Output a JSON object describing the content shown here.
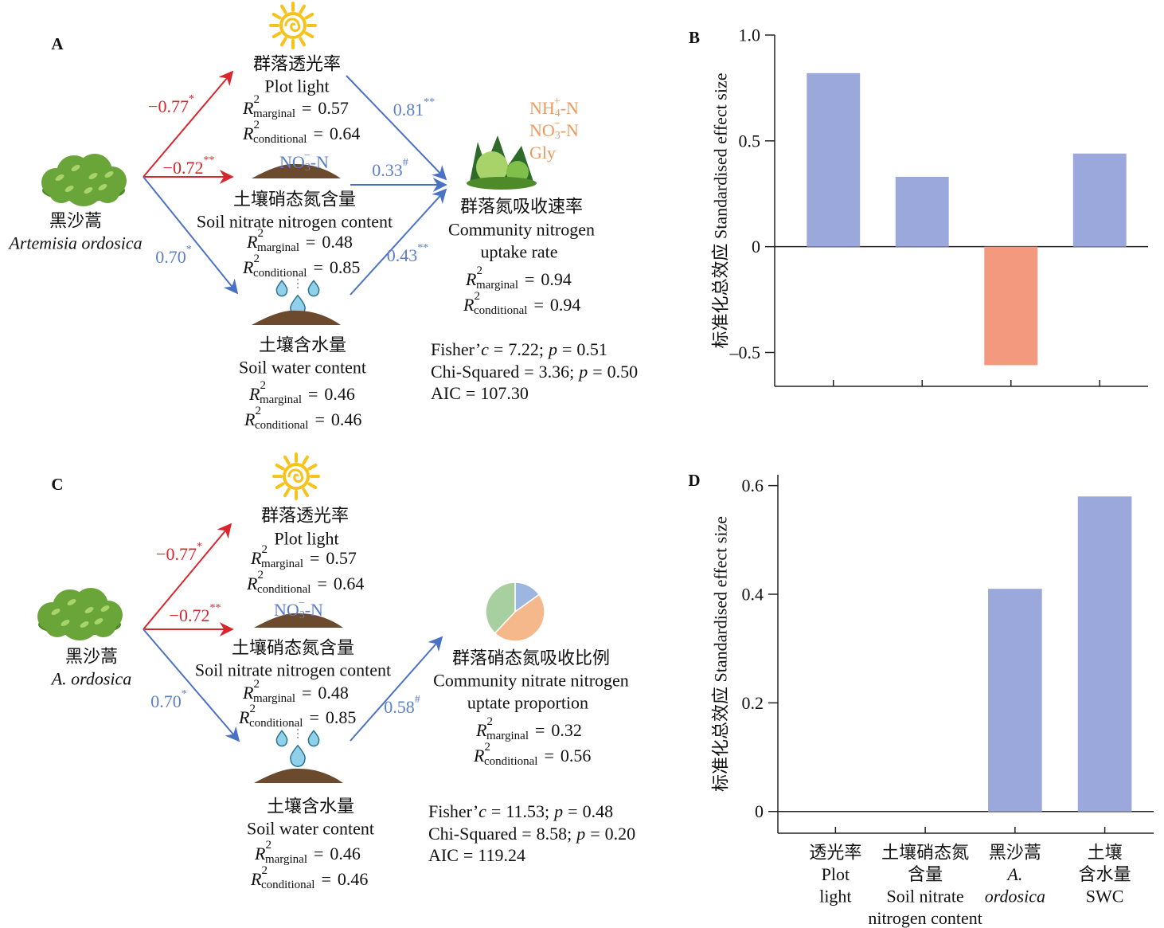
{
  "symbols": {
    "r": "R",
    "power": "2",
    "equals": "=",
    "marginal": "marginal",
    "conditional": "conditional",
    "fisher": "Fisher’",
    "c": "c",
    "chi": "Chi-Squared",
    "p": "p",
    "aic": "AIC",
    "semicolon": ";"
  },
  "panels": [
    {
      "letter": "A",
      "predictor": {
        "zh": "黑沙蒿",
        "en": "Artemisia ordosica"
      },
      "light": {
        "zh": "群落透光率",
        "en": "Plot light",
        "r2_marginal": "0.57",
        "r2_conditional": "0.64"
      },
      "nitrate": {
        "tag": {
          "base": "NO",
          "sub": "3",
          "sup": "−",
          "rest": "-N"
        },
        "zh": "土壤硝态氮含量",
        "en": "Soil nitrate nitrogen content",
        "r2_marginal": "0.48",
        "r2_conditional": "0.85"
      },
      "water": {
        "zh": "土壤含水量",
        "en": "Soil water content",
        "r2_marginal": "0.46",
        "r2_conditional": "0.46"
      },
      "response": {
        "lines": [
          "群落氮吸收速率",
          "Community nitrogen",
          "uptake rate"
        ],
        "r2_marginal": "0.94",
        "r2_conditional": "0.94",
        "forms": [
          {
            "base": "NH",
            "sub": "4",
            "sup": "+",
            "rest": "-N"
          },
          {
            "base": "NO",
            "sub": "3",
            "sup": "−",
            "rest": "-N"
          },
          {
            "base": "Gly"
          }
        ]
      },
      "paths": [
        {
          "value": "−0.77",
          "sig": "*"
        },
        {
          "value": "−0.72",
          "sig": "**"
        },
        {
          "value": "0.70",
          "sig": "*"
        },
        {
          "value": "0.81",
          "sig": "**"
        },
        {
          "value": "0.33",
          "sig": "#"
        },
        {
          "value": "0.43",
          "sig": "**"
        }
      ],
      "fit": {
        "fisher_c": "7.22",
        "fisher_p": "0.51",
        "chi": "3.36",
        "chi_p": "0.50",
        "aic": "107.30"
      }
    },
    {
      "letter": "C",
      "predictor": {
        "zh": "黑沙蒿",
        "en": "A. ordosica"
      },
      "light": {
        "zh": "群落透光率",
        "en": "Plot light",
        "r2_marginal": "0.57",
        "r2_conditional": "0.64"
      },
      "nitrate": {
        "tag": {
          "base": "NO",
          "sub": "3",
          "sup": "−",
          "rest": "-N"
        },
        "zh": "土壤硝态氮含量",
        "en": "Soil nitrate nitrogen content",
        "r2_marginal": "0.48",
        "r2_conditional": "0.85"
      },
      "water": {
        "zh": "土壤含水量",
        "en": "Soil water content",
        "r2_marginal": "0.46",
        "r2_conditional": "0.46"
      },
      "response": {
        "lines": [
          "群落硝态氮吸收比例",
          "Community nitrate nitrogen",
          "uptate proportion"
        ],
        "r2_marginal": "0.32",
        "r2_conditional": "0.56"
      },
      "paths": [
        {
          "value": "−0.77",
          "sig": "*"
        },
        {
          "value": "−0.72",
          "sig": "**"
        },
        {
          "value": "0.70",
          "sig": "*"
        },
        {
          "value": "0.58",
          "sig": "#"
        }
      ],
      "fit": {
        "fisher_c": "11.53",
        "fisher_p": "0.48",
        "chi": "8.58",
        "chi_p": "0.20",
        "aic": "119.24"
      }
    }
  ],
  "chart_data": [
    {
      "type": "bar",
      "label": "B",
      "ylabel": "标准化总效应 Standardised effect size",
      "categories": [
        null,
        null,
        null,
        null
      ],
      "values": [
        0.82,
        0.33,
        -0.56,
        0.44
      ],
      "colors": [
        "#9ba8dc",
        "#9ba8dc",
        "#f39a7e",
        "#9ba8dc"
      ],
      "ylim": [
        -0.66,
        1.0
      ],
      "yticks": [
        {
          "value": 1,
          "label": "1.0"
        },
        0.5,
        0,
        {
          "value": -0.5,
          "label": "–0.5"
        }
      ]
    },
    {
      "type": "bar",
      "label": "D",
      "ylabel": "标准化总效应 Standardised effect size",
      "categories": [
        [
          "透光率",
          "Plot",
          "light"
        ],
        [
          "土壤硝态氮",
          "含量",
          "Soil nitrate",
          "nitrogen content"
        ],
        [
          "黑沙蒿",
          "A.",
          "ordosica"
        ],
        [
          "土壤",
          "含水量",
          "SWC"
        ]
      ],
      "values": [
        0,
        0,
        0.41,
        0.58
      ],
      "colors": [
        "#9ba8dc",
        "#9ba8dc",
        "#9ba8dc",
        "#9ba8dc"
      ],
      "ylim": [
        -0.04,
        0.62
      ],
      "yticks": [
        0,
        0.2,
        0.4,
        0.6
      ]
    }
  ]
}
